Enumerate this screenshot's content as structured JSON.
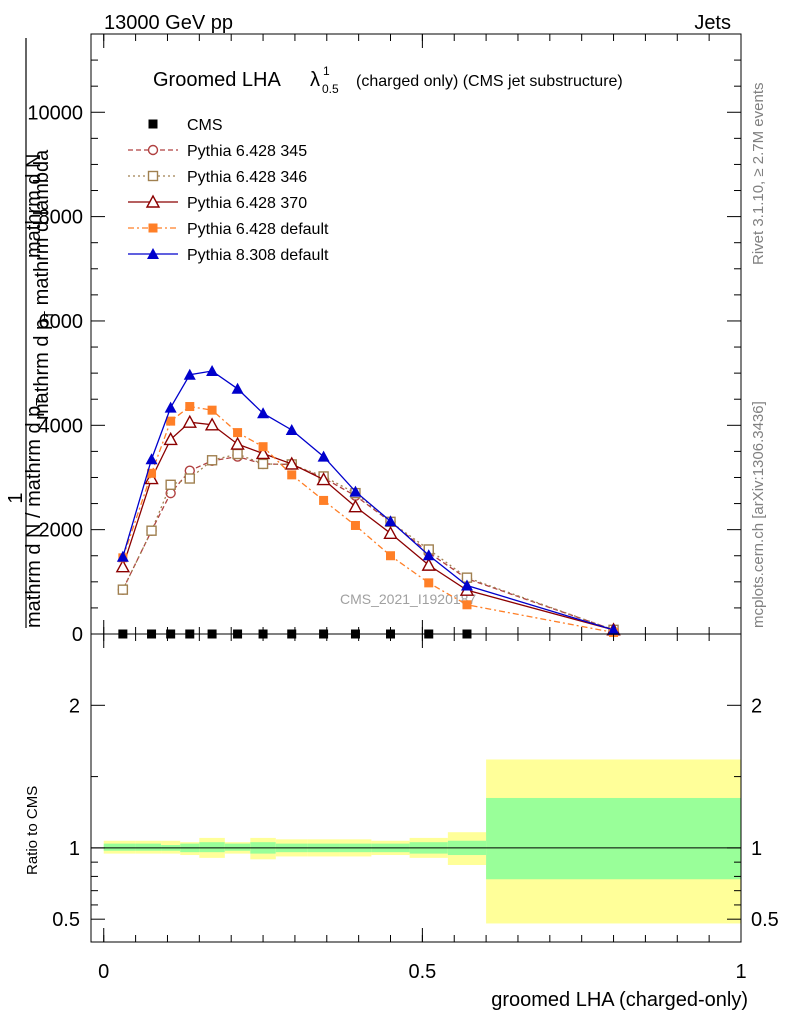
{
  "header": {
    "energy": "13000 GeV pp",
    "category": "Jets"
  },
  "side_text": {
    "rivet": "Rivet 3.1.10, ≥ 2.7M events",
    "site": "mcplots.cern.ch [arXiv:1306.3436]"
  },
  "watermark": "CMS_2021_I1920187",
  "chart_data": [
    {
      "type": "line",
      "title_main": "Groomed LHA",
      "title_symbol": "λ",
      "title_sup": "1",
      "title_sub": "0.5",
      "title_rest": "(charged only) (CMS jet substructure)",
      "ylabel_parts": [
        "1",
        "mathrm d N / mathrm d p",
        "T",
        "mathrm d N",
        "mathrm d p",
        "T",
        "mathrm d",
        "lambda"
      ],
      "ylim": [
        0,
        11500
      ],
      "yticks": [
        0,
        2000,
        4000,
        6000,
        8000,
        10000
      ],
      "ytick_labels": [
        "0",
        "2000",
        "4000",
        "6000",
        "8000",
        "10000"
      ],
      "xlim": [
        -0.02,
        1.0
      ],
      "x": [
        0.03,
        0.075,
        0.105,
        0.135,
        0.17,
        0.21,
        0.25,
        0.295,
        0.345,
        0.395,
        0.45,
        0.51,
        0.57,
        0.8
      ],
      "series": [
        {
          "name": "CMS",
          "color": "#000000",
          "marker": "square-filled",
          "dash": "",
          "values": [
            0,
            0,
            0,
            0,
            0,
            0,
            0,
            0,
            0,
            0,
            0,
            0,
            0,
            null
          ]
        },
        {
          "name": "Pythia 6.428 345",
          "color": "#b04040",
          "marker": "circle-open",
          "dash": "5,3",
          "values": [
            850,
            1980,
            2700,
            3130,
            3320,
            3400,
            3260,
            3250,
            2990,
            2650,
            2150,
            1560,
            1060,
            80
          ]
        },
        {
          "name": "Pythia 6.428 346",
          "color": "#a08050",
          "marker": "square-open",
          "dash": "2,3",
          "values": [
            850,
            1980,
            2860,
            2980,
            3330,
            3450,
            3260,
            3250,
            3020,
            2700,
            2150,
            1620,
            1080,
            80
          ]
        },
        {
          "name": "Pythia 6.428 370",
          "color": "#8b0000",
          "marker": "triangle-open",
          "dash": "",
          "values": [
            1290,
            2980,
            3730,
            4060,
            4010,
            3640,
            3460,
            3260,
            2960,
            2440,
            1930,
            1320,
            840,
            80
          ]
        },
        {
          "name": "Pythia 6.428 default",
          "color": "#ff7f27",
          "marker": "square-filled",
          "dash": "6,3,2,3",
          "values": [
            1460,
            3080,
            4080,
            4360,
            4290,
            3860,
            3590,
            3050,
            2560,
            2080,
            1500,
            980,
            560,
            30
          ]
        },
        {
          "name": "Pythia 8.308 default",
          "color": "#0000cc",
          "marker": "triangle-filled",
          "dash": "",
          "values": [
            1480,
            3350,
            4340,
            4970,
            5040,
            4700,
            4230,
            3910,
            3400,
            2730,
            2160,
            1510,
            930,
            80
          ]
        }
      ],
      "legend_placement": "top-left"
    },
    {
      "type": "area",
      "ylabel": "Ratio to CMS",
      "xlabel": "groomed LHA (charged-only)",
      "ylim": [
        0.34,
        2.5
      ],
      "yticks": [
        0.5,
        1,
        2
      ],
      "ytick_labels": [
        "0.5",
        "1",
        "2"
      ],
      "xticks": [
        0,
        0.5,
        1
      ],
      "xtick_labels": [
        "0",
        "0.5",
        "1"
      ],
      "xlim": [
        -0.02,
        1.0
      ],
      "bins": [
        {
          "lo": 0.0,
          "hi": 0.05,
          "stat": [
            0.98,
            1.03
          ],
          "total": [
            0.96,
            1.05
          ]
        },
        {
          "lo": 0.05,
          "hi": 0.09,
          "stat": [
            0.98,
            1.03
          ],
          "total": [
            0.96,
            1.05
          ]
        },
        {
          "lo": 0.09,
          "hi": 0.12,
          "stat": [
            0.98,
            1.02
          ],
          "total": [
            0.96,
            1.05
          ]
        },
        {
          "lo": 0.12,
          "hi": 0.15,
          "stat": [
            0.97,
            1.03
          ],
          "total": [
            0.95,
            1.04
          ]
        },
        {
          "lo": 0.15,
          "hi": 0.19,
          "stat": [
            0.97,
            1.04
          ],
          "total": [
            0.93,
            1.07
          ]
        },
        {
          "lo": 0.19,
          "hi": 0.23,
          "stat": [
            0.98,
            1.03
          ],
          "total": [
            0.96,
            1.04
          ]
        },
        {
          "lo": 0.23,
          "hi": 0.27,
          "stat": [
            0.96,
            1.04
          ],
          "total": [
            0.92,
            1.07
          ]
        },
        {
          "lo": 0.27,
          "hi": 0.32,
          "stat": [
            0.97,
            1.03
          ],
          "total": [
            0.94,
            1.06
          ]
        },
        {
          "lo": 0.32,
          "hi": 0.37,
          "stat": [
            0.97,
            1.03
          ],
          "total": [
            0.94,
            1.06
          ]
        },
        {
          "lo": 0.37,
          "hi": 0.42,
          "stat": [
            0.97,
            1.03
          ],
          "total": [
            0.94,
            1.06
          ]
        },
        {
          "lo": 0.42,
          "hi": 0.48,
          "stat": [
            0.97,
            1.03
          ],
          "total": [
            0.95,
            1.05
          ]
        },
        {
          "lo": 0.48,
          "hi": 0.54,
          "stat": [
            0.96,
            1.04
          ],
          "total": [
            0.93,
            1.07
          ]
        },
        {
          "lo": 0.54,
          "hi": 0.6,
          "stat": [
            0.95,
            1.05
          ],
          "total": [
            0.88,
            1.11
          ]
        },
        {
          "lo": 0.6,
          "hi": 1.0,
          "stat": [
            0.78,
            1.35
          ],
          "total": [
            0.47,
            1.62
          ]
        }
      ],
      "colors": {
        "stat": "#99ff99",
        "total": "#ffff99"
      }
    }
  ]
}
